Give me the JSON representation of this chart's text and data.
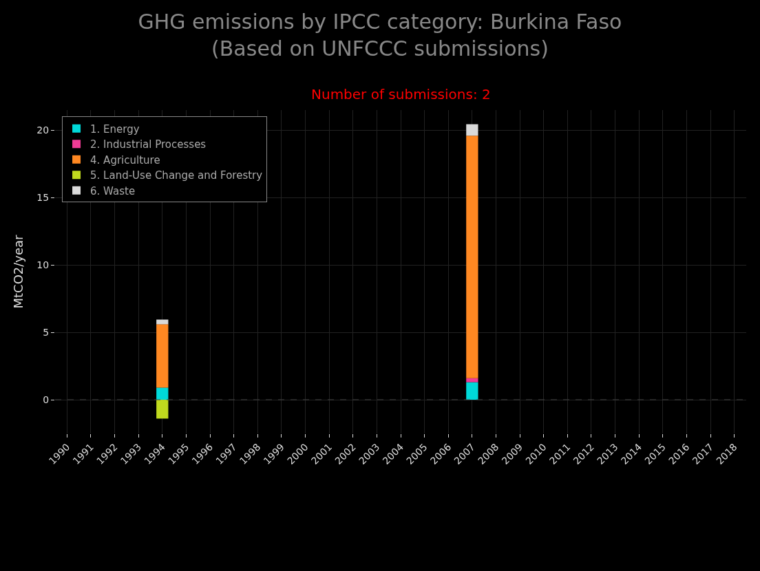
{
  "chart_data": {
    "type": "bar",
    "title": "GHG emissions by IPCC category: Burkina Faso\n(Based on UNFCCC submissions)",
    "subtitle": "Number of submissions: 2",
    "ylabel": "MtCO2/year",
    "categories": [
      "1990",
      "1991",
      "1992",
      "1993",
      "1994",
      "1995",
      "1996",
      "1997",
      "1998",
      "1999",
      "2000",
      "2001",
      "2002",
      "2003",
      "2004",
      "2005",
      "2006",
      "2007",
      "2008",
      "2009",
      "2010",
      "2011",
      "2012",
      "2013",
      "2014",
      "2015",
      "2016",
      "2017",
      "2018"
    ],
    "stacked": true,
    "series": [
      {
        "name": "1. Energy",
        "color": "#00d9d9",
        "values": [
          null,
          null,
          null,
          null,
          0.9,
          null,
          null,
          null,
          null,
          null,
          null,
          null,
          null,
          null,
          null,
          null,
          null,
          1.3,
          null,
          null,
          null,
          null,
          null,
          null,
          null,
          null,
          null,
          null,
          null
        ]
      },
      {
        "name": "2. Industrial Processes",
        "color": "#f03c96",
        "values": [
          null,
          null,
          null,
          null,
          null,
          null,
          null,
          null,
          null,
          null,
          null,
          null,
          null,
          null,
          null,
          null,
          null,
          0.3,
          null,
          null,
          null,
          null,
          null,
          null,
          null,
          null,
          null,
          null,
          null
        ]
      },
      {
        "name": "4. Agriculture",
        "color": "#ff8822",
        "values": [
          null,
          null,
          null,
          null,
          4.7,
          null,
          null,
          null,
          null,
          null,
          null,
          null,
          null,
          null,
          null,
          null,
          null,
          18.0,
          null,
          null,
          null,
          null,
          null,
          null,
          null,
          null,
          null,
          null,
          null
        ]
      },
      {
        "name": "5. Land-Use Change and Forestry",
        "color": "#c0d91e",
        "values": [
          null,
          null,
          null,
          null,
          -1.4,
          null,
          null,
          null,
          null,
          null,
          null,
          null,
          null,
          null,
          null,
          null,
          null,
          null,
          null,
          null,
          null,
          null,
          null,
          null,
          null,
          null,
          null,
          null,
          null
        ]
      },
      {
        "name": "6. Waste",
        "color": "#d9d9d9",
        "values": [
          null,
          null,
          null,
          null,
          0.35,
          null,
          null,
          null,
          null,
          null,
          null,
          null,
          null,
          null,
          null,
          null,
          null,
          0.85,
          null,
          null,
          null,
          null,
          null,
          null,
          null,
          null,
          null,
          null,
          null
        ]
      }
    ],
    "ylim": [
      -2.5,
      21.5
    ],
    "yticks": [
      0,
      5,
      10,
      15,
      20
    ],
    "ref_lines": [
      {
        "axis": "y",
        "value": 0,
        "color": "#444444",
        "line_style": "dashed"
      }
    ],
    "grid": true,
    "legend": "top left"
  }
}
